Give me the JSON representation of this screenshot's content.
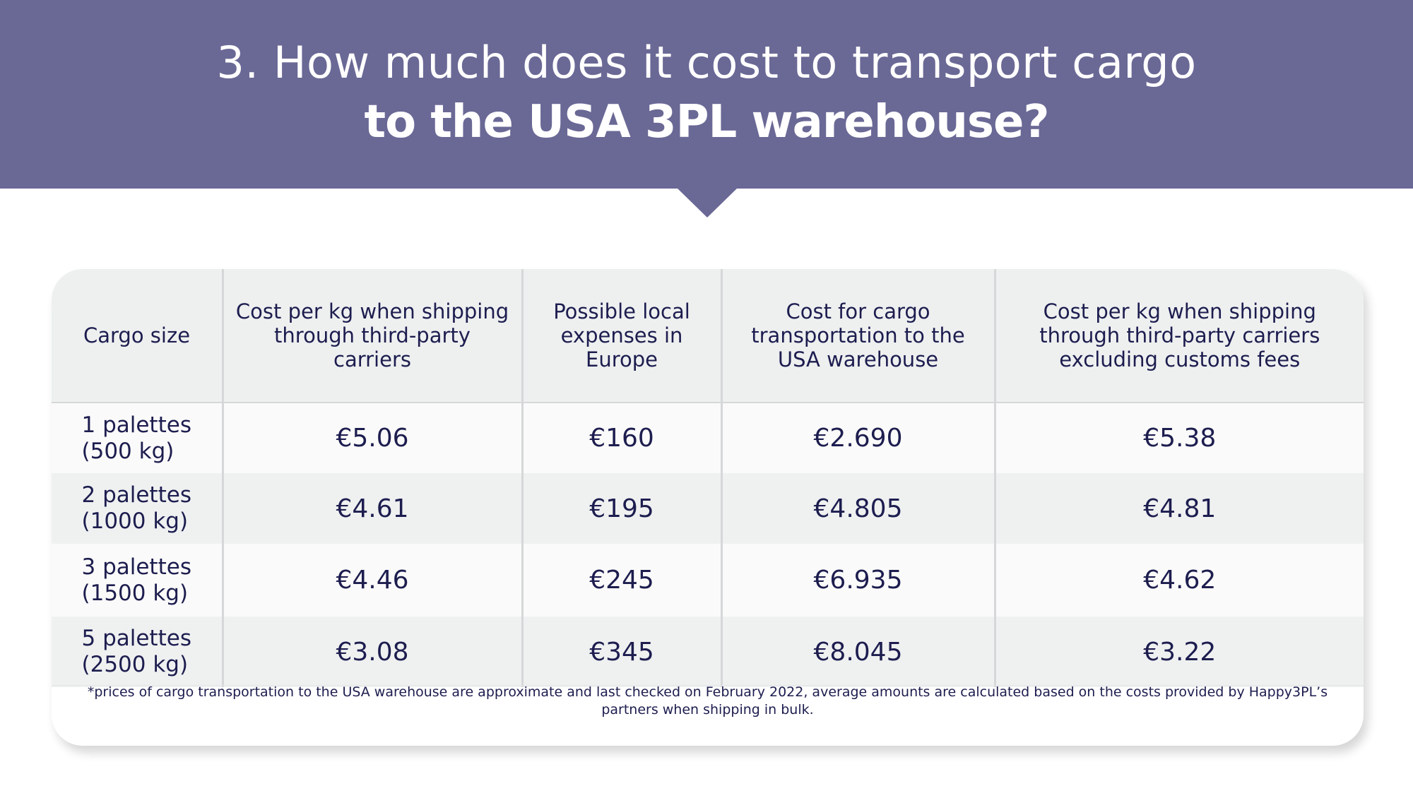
{
  "header": {
    "title_line1": "3. How much does it cost to transport cargo",
    "title_line2": "to the USA 3PL warehouse?",
    "colors": {
      "banner": "#6a6895",
      "text": "#1d1d4f"
    }
  },
  "table": {
    "columns": [
      "Cargo size",
      "Cost per kg when shipping through third-party carriers",
      "Possible local expenses in Europe",
      "Cost for cargo transportation to the USA warehouse",
      "Cost per kg when shipping through third-party carriers excluding customs fees"
    ],
    "rows": [
      {
        "size_line1": "1 palettes",
        "size_line2": "(500 kg)",
        "cost_per_kg": "€5.06",
        "local_expenses": "€160",
        "transport_cost": "€2.690",
        "cost_per_kg_excl_customs": "€5.38"
      },
      {
        "size_line1": "2 palettes",
        "size_line2": "(1000 kg)",
        "cost_per_kg": "€4.61",
        "local_expenses": "€195",
        "transport_cost": "€4.805",
        "cost_per_kg_excl_customs": "€4.81"
      },
      {
        "size_line1": "3 palettes",
        "size_line2": "(1500 kg)",
        "cost_per_kg": "€4.46",
        "local_expenses": "€245",
        "transport_cost": "€6.935",
        "cost_per_kg_excl_customs": "€4.62"
      },
      {
        "size_line1": "5 palettes",
        "size_line2": "(2500 kg)",
        "cost_per_kg": "€3.08",
        "local_expenses": "€345",
        "transport_cost": "€8.045",
        "cost_per_kg_excl_customs": "€3.22"
      }
    ]
  },
  "footnote": "*prices of cargo transportation to the USA warehouse are approximate and last checked on February 2022, average amounts are calculated based on the costs provided by Happy3PL’s partners when shipping in bulk."
}
